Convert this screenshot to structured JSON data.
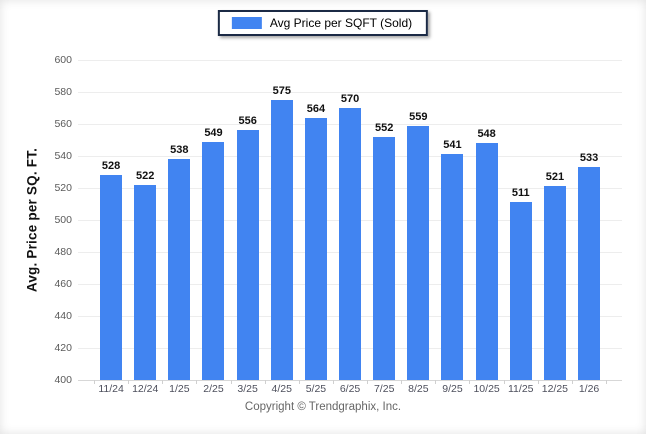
{
  "legend": {
    "label": "Avg Price per SQFT (Sold)"
  },
  "footer": {
    "text": "Copyright © Trendgraphix, Inc."
  },
  "colors": {
    "bar": "#4184f1",
    "legend_border": "#1b2a45",
    "gridline": "#ededed",
    "baseline": "#d7d7d7"
  },
  "chart_data": {
    "type": "bar",
    "title": "",
    "series_name": "Avg Price per SQFT (Sold)",
    "categories": [
      "11/24",
      "12/24",
      "1/25",
      "2/25",
      "3/25",
      "4/25",
      "5/25",
      "6/25",
      "7/25",
      "8/25",
      "9/25",
      "10/25",
      "11/25",
      "12/25",
      "1/26"
    ],
    "values": [
      528,
      522,
      538,
      549,
      556,
      575,
      564,
      570,
      552,
      559,
      541,
      548,
      511,
      521,
      533
    ],
    "xlabel": "",
    "ylabel": "Avg. Price per SQ. FT.",
    "ylim": [
      400,
      600
    ],
    "ytick_step": 20,
    "grid": true,
    "legend_position": "top-center",
    "value_labels": true
  }
}
